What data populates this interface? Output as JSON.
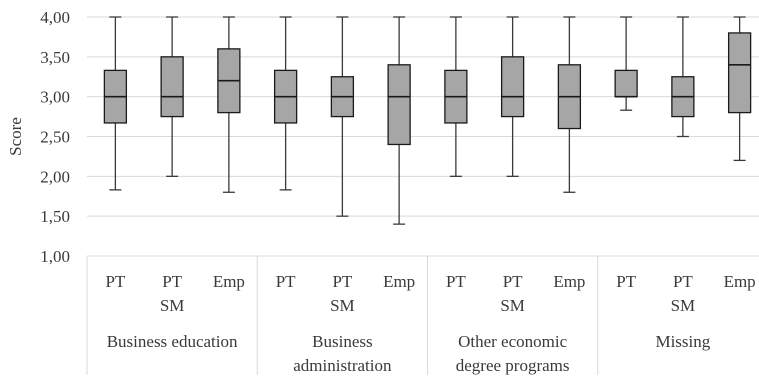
{
  "chart_data": {
    "type": "boxplot",
    "ylabel": "Score",
    "ylim": [
      1.0,
      4.0
    ],
    "yticks": [
      "1,00",
      "1,50",
      "2,00",
      "2,50",
      "3,00",
      "3,50",
      "4,00"
    ],
    "ytick_values": [
      1.0,
      1.5,
      2.0,
      2.5,
      3.0,
      3.5,
      4.0
    ],
    "grid": "horizontal",
    "colors": {
      "box_fill": "#a6a6a6",
      "box_stroke": "#1a1a1a",
      "grid": "#d9d9d9",
      "text": "#3a3a3a"
    },
    "groups": [
      {
        "label": [
          "Business education"
        ],
        "boxes": [
          {
            "category": [
              "PT"
            ],
            "min": 1.83,
            "q1": 2.67,
            "median": 3.0,
            "q3": 3.33,
            "max": 4.0
          },
          {
            "category": [
              "PT",
              "SM"
            ],
            "min": 2.0,
            "q1": 2.75,
            "median": 3.0,
            "q3": 3.5,
            "max": 4.0
          },
          {
            "category": [
              "Emp"
            ],
            "min": 1.8,
            "q1": 2.8,
            "median": 3.2,
            "q3": 3.6,
            "max": 4.0
          }
        ]
      },
      {
        "label": [
          "Business",
          "administration"
        ],
        "boxes": [
          {
            "category": [
              "PT"
            ],
            "min": 1.83,
            "q1": 2.67,
            "median": 3.0,
            "q3": 3.33,
            "max": 4.0
          },
          {
            "category": [
              "PT",
              "SM"
            ],
            "min": 1.5,
            "q1": 2.75,
            "median": 3.0,
            "q3": 3.25,
            "max": 4.0
          },
          {
            "category": [
              "Emp"
            ],
            "min": 1.4,
            "q1": 2.4,
            "median": 3.0,
            "q3": 3.4,
            "max": 4.0
          }
        ]
      },
      {
        "label": [
          "Other economic",
          "degree programs"
        ],
        "boxes": [
          {
            "category": [
              "PT"
            ],
            "min": 2.0,
            "q1": 2.67,
            "median": 3.0,
            "q3": 3.33,
            "max": 4.0
          },
          {
            "category": [
              "PT",
              "SM"
            ],
            "min": 2.0,
            "q1": 2.75,
            "median": 3.0,
            "q3": 3.5,
            "max": 4.0
          },
          {
            "category": [
              "Emp"
            ],
            "min": 1.8,
            "q1": 2.6,
            "median": 3.0,
            "q3": 3.4,
            "max": 4.0
          }
        ]
      },
      {
        "label": [
          "Missing"
        ],
        "boxes": [
          {
            "category": [
              "PT"
            ],
            "min": 2.83,
            "q1": 3.0,
            "median": 3.0,
            "q3": 3.33,
            "max": 4.0
          },
          {
            "category": [
              "PT",
              "SM"
            ],
            "min": 2.5,
            "q1": 2.75,
            "median": 3.0,
            "q3": 3.25,
            "max": 4.0
          },
          {
            "category": [
              "Emp"
            ],
            "min": 2.2,
            "q1": 2.8,
            "median": 3.4,
            "q3": 3.8,
            "max": 4.0
          }
        ]
      }
    ]
  }
}
